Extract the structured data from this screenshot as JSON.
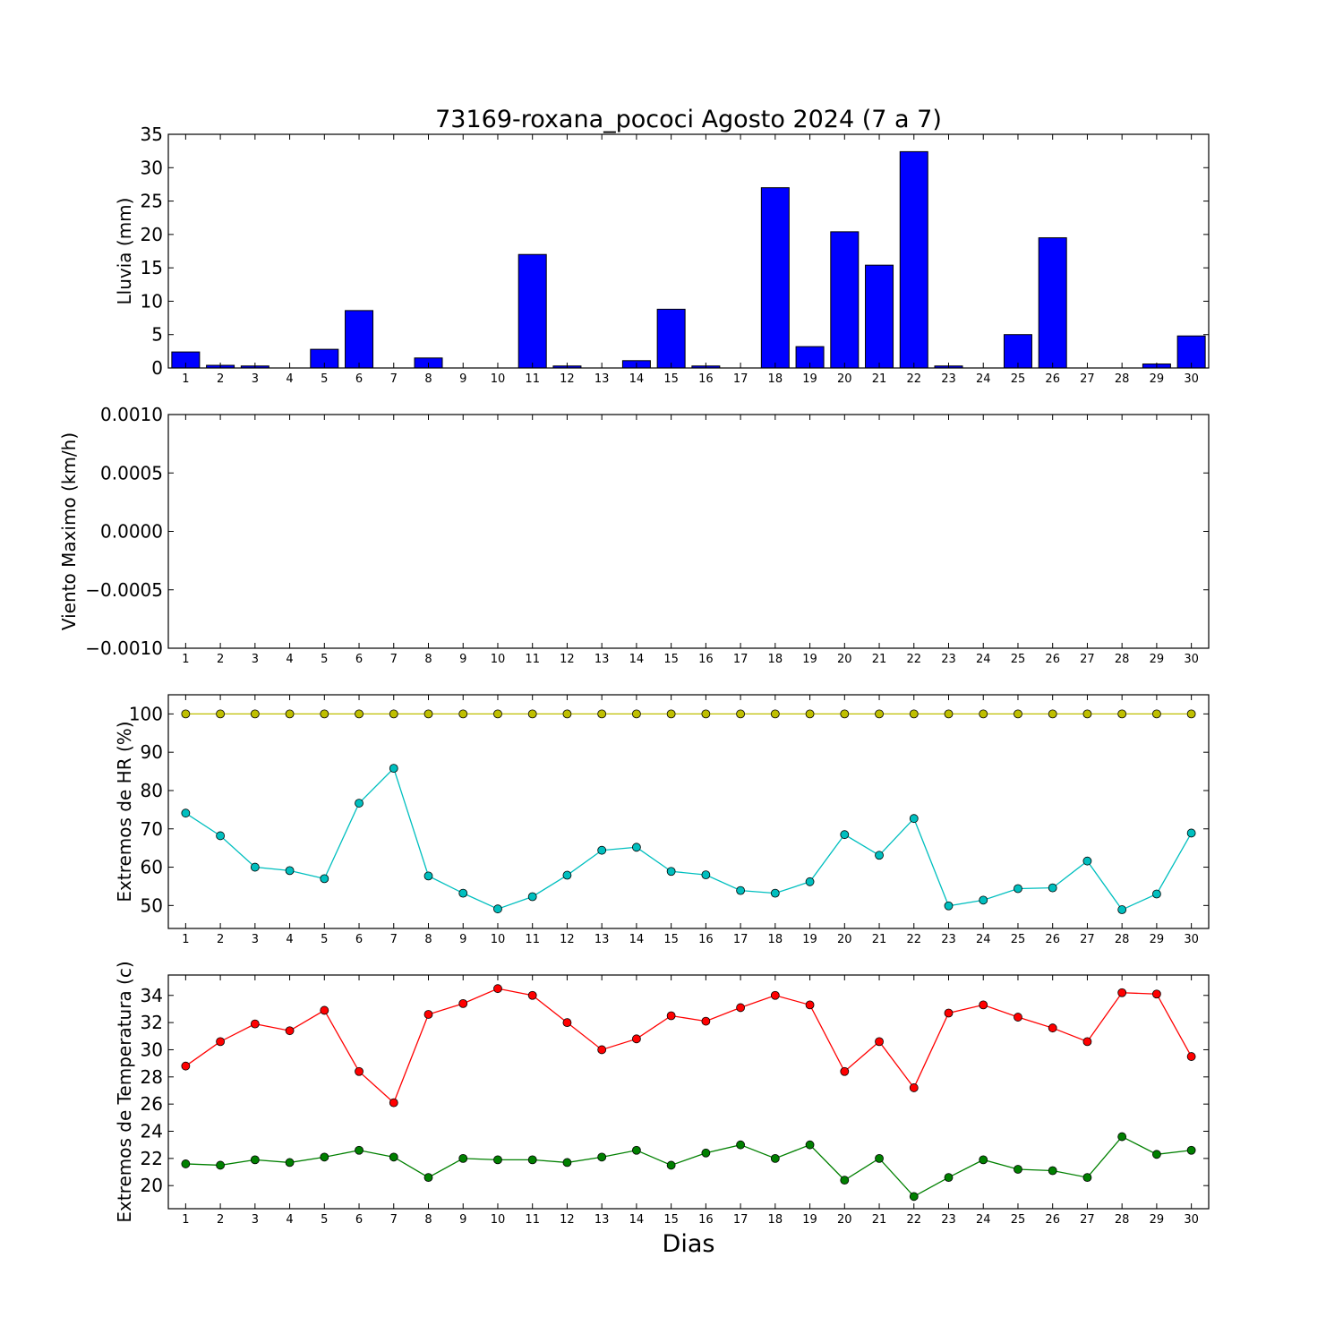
{
  "figure": {
    "title": "73169-roxana_pococi Agosto 2024  (7 a 7)",
    "xlabel": "Dias"
  },
  "colors": {
    "rain_bar": "#0000ff",
    "hr_max": "#bfbf00",
    "hr_min": "#00bfbf",
    "temp_max": "#ff0000",
    "temp_min": "#008000"
  },
  "chart_data": [
    {
      "type": "bar",
      "ylabel": "Lluvia (mm)",
      "ylim": [
        0,
        35
      ],
      "yticks": [
        0,
        5,
        10,
        15,
        20,
        25,
        30,
        35
      ],
      "ytick_labels": [
        "0",
        "5",
        "10",
        "15",
        "20",
        "25",
        "30",
        "35"
      ],
      "categories": [
        "1",
        "2",
        "3",
        "4",
        "5",
        "6",
        "7",
        "8",
        "9",
        "10",
        "11",
        "12",
        "13",
        "14",
        "15",
        "16",
        "17",
        "18",
        "19",
        "20",
        "21",
        "22",
        "23",
        "24",
        "25",
        "26",
        "27",
        "28",
        "29",
        "30"
      ],
      "values": [
        2.4,
        0.4,
        0.3,
        0,
        2.8,
        8.6,
        0,
        1.5,
        0,
        0,
        17.0,
        0.3,
        0,
        1.1,
        8.8,
        0.3,
        0,
        27.0,
        3.2,
        20.4,
        15.4,
        32.4,
        0.3,
        0,
        5.0,
        19.5,
        0,
        0,
        0.6,
        4.8
      ],
      "color": "#0000ff"
    },
    {
      "type": "line",
      "ylabel": "Viento Maximo (km/h)",
      "ylim": [
        -0.001,
        0.001
      ],
      "yticks": [
        -0.001,
        -0.0005,
        0,
        0.0005,
        0.001
      ],
      "ytick_labels": [
        "−0.0010",
        "−0.0005",
        "0.0000",
        "0.0005",
        "0.0010"
      ],
      "categories": [
        "1",
        "2",
        "3",
        "4",
        "5",
        "6",
        "7",
        "8",
        "9",
        "10",
        "11",
        "12",
        "13",
        "14",
        "15",
        "16",
        "17",
        "18",
        "19",
        "20",
        "21",
        "22",
        "23",
        "24",
        "25",
        "26",
        "27",
        "28",
        "29",
        "30"
      ],
      "series": []
    },
    {
      "type": "line",
      "ylabel": "Extremos de HR (%)",
      "ylim": [
        44,
        105
      ],
      "yticks": [
        50,
        60,
        70,
        80,
        90,
        100
      ],
      "ytick_labels": [
        "50",
        "60",
        "70",
        "80",
        "90",
        "100"
      ],
      "categories": [
        "1",
        "2",
        "3",
        "4",
        "5",
        "6",
        "7",
        "8",
        "9",
        "10",
        "11",
        "12",
        "13",
        "14",
        "15",
        "16",
        "17",
        "18",
        "19",
        "20",
        "21",
        "22",
        "23",
        "24",
        "25",
        "26",
        "27",
        "28",
        "29",
        "30"
      ],
      "series": [
        {
          "color": "#bfbf00",
          "values": [
            100,
            100,
            100,
            100,
            100,
            100,
            100,
            100,
            100,
            100,
            100,
            100,
            100,
            100,
            100,
            100,
            100,
            100,
            100,
            100,
            100,
            100,
            100,
            100,
            100,
            100,
            100,
            100,
            100,
            100
          ]
        },
        {
          "color": "#00bfbf",
          "values": [
            74.1,
            68.2,
            60.0,
            59.1,
            57.0,
            76.7,
            85.8,
            57.7,
            53.2,
            49.1,
            52.3,
            57.9,
            64.4,
            65.2,
            58.9,
            58.0,
            53.9,
            53.2,
            56.2,
            68.5,
            63.1,
            72.7,
            49.9,
            51.4,
            54.4,
            54.6,
            61.6,
            48.9,
            53.0,
            68.9
          ]
        }
      ]
    },
    {
      "type": "line",
      "ylabel": "Extremos de Temperatura (c)",
      "ylim": [
        18.3,
        35.5
      ],
      "yticks": [
        20,
        22,
        24,
        26,
        28,
        30,
        32,
        34
      ],
      "ytick_labels": [
        "20",
        "22",
        "24",
        "26",
        "28",
        "30",
        "32",
        "34"
      ],
      "categories": [
        "1",
        "2",
        "3",
        "4",
        "5",
        "6",
        "7",
        "8",
        "9",
        "10",
        "11",
        "12",
        "13",
        "14",
        "15",
        "16",
        "17",
        "18",
        "19",
        "20",
        "21",
        "22",
        "23",
        "24",
        "25",
        "26",
        "27",
        "28",
        "29",
        "30"
      ],
      "series": [
        {
          "color": "#ff0000",
          "values": [
            28.8,
            30.6,
            31.9,
            31.4,
            32.9,
            28.4,
            26.1,
            32.6,
            33.4,
            34.5,
            34.0,
            32.0,
            30.0,
            30.8,
            32.5,
            32.1,
            33.1,
            34.0,
            33.3,
            28.4,
            30.6,
            27.2,
            32.7,
            33.3,
            32.4,
            31.6,
            30.6,
            34.2,
            34.1,
            29.5
          ]
        },
        {
          "color": "#008000",
          "values": [
            21.6,
            21.5,
            21.9,
            21.7,
            22.1,
            22.6,
            22.1,
            20.6,
            22.0,
            21.9,
            21.9,
            21.7,
            22.1,
            22.6,
            21.5,
            22.4,
            23.0,
            22.0,
            23.0,
            20.4,
            22.0,
            19.2,
            20.6,
            21.9,
            21.2,
            21.1,
            20.6,
            23.6,
            22.3,
            22.6
          ]
        }
      ]
    }
  ]
}
